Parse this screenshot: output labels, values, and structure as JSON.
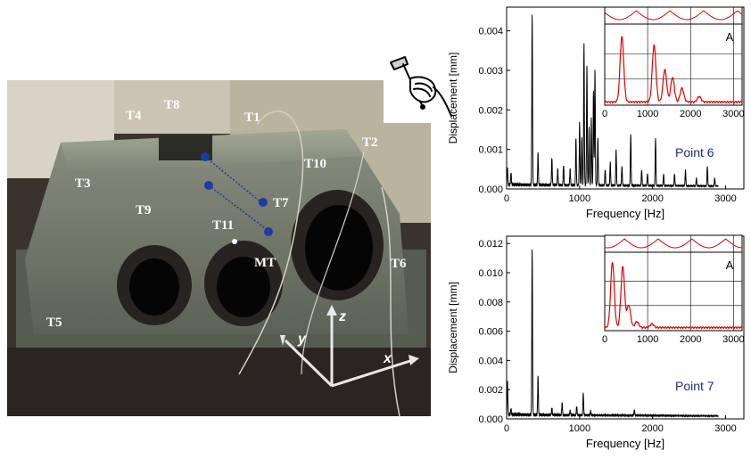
{
  "photo": {
    "sensor_labels": [
      "T1",
      "T2",
      "T3",
      "T4",
      "T5",
      "T6",
      "T7",
      "T8",
      "T9",
      "T10",
      "T11",
      "MT"
    ],
    "axis_labels": [
      "x",
      "y",
      "z"
    ]
  },
  "chart_data": [
    {
      "type": "line",
      "annotation": "Point 6",
      "xlabel": "Frequency [Hz]",
      "ylabel": "Displacement [mm]",
      "xlim": [
        0,
        3250
      ],
      "ylim": [
        0,
        0.0046
      ],
      "xticks": [
        0,
        1000,
        2000,
        3000
      ],
      "yticks": [
        0.0,
        0.001,
        0.002,
        0.003,
        0.004
      ],
      "ytick_labels": [
        "0.000",
        "0.001",
        "0.002",
        "0.003",
        "0.004"
      ],
      "color": "#000000",
      "peaks": [
        {
          "x": 12,
          "y": 0.0004
        },
        {
          "x": 60,
          "y": 0.0003
        },
        {
          "x": 350,
          "y": 0.0043
        },
        {
          "x": 430,
          "y": 0.0008
        },
        {
          "x": 620,
          "y": 0.0007
        },
        {
          "x": 700,
          "y": 0.0004
        },
        {
          "x": 780,
          "y": 0.0005
        },
        {
          "x": 870,
          "y": 0.0004
        },
        {
          "x": 950,
          "y": 0.0012
        },
        {
          "x": 1000,
          "y": 0.0016
        },
        {
          "x": 1030,
          "y": 0.0012
        },
        {
          "x": 1060,
          "y": 0.0036
        },
        {
          "x": 1100,
          "y": 0.003
        },
        {
          "x": 1130,
          "y": 0.0015
        },
        {
          "x": 1160,
          "y": 0.0017
        },
        {
          "x": 1190,
          "y": 0.0024
        },
        {
          "x": 1210,
          "y": 0.0029
        },
        {
          "x": 1250,
          "y": 0.0012
        },
        {
          "x": 1350,
          "y": 0.0004
        },
        {
          "x": 1420,
          "y": 0.0006
        },
        {
          "x": 1500,
          "y": 0.0009
        },
        {
          "x": 1580,
          "y": 0.0005
        },
        {
          "x": 1700,
          "y": 0.0013
        },
        {
          "x": 1850,
          "y": 0.0004
        },
        {
          "x": 1930,
          "y": 0.0003
        },
        {
          "x": 2040,
          "y": 0.0012
        },
        {
          "x": 2150,
          "y": 0.0003
        },
        {
          "x": 2300,
          "y": 0.0003
        },
        {
          "x": 2450,
          "y": 0.0004
        },
        {
          "x": 2600,
          "y": 0.0002
        },
        {
          "x": 2750,
          "y": 0.0005
        },
        {
          "x": 2850,
          "y": 0.0002
        }
      ],
      "inset": {
        "label": "A",
        "xlim": [
          0,
          3200
        ],
        "xticks": [
          0,
          1000,
          2000,
          3000
        ],
        "color": "#e00000",
        "peaks": [
          {
            "x": 400,
            "y": 0.85
          },
          {
            "x": 1150,
            "y": 0.74
          },
          {
            "x": 1400,
            "y": 0.42
          },
          {
            "x": 1580,
            "y": 0.32
          },
          {
            "x": 1800,
            "y": 0.18
          },
          {
            "x": 2200,
            "y": 0.07
          }
        ]
      }
    },
    {
      "type": "line",
      "annotation": "Point 7",
      "xlabel": "Frequency [Hz]",
      "ylabel": "Displacement [mm]",
      "xlim": [
        0,
        3250
      ],
      "ylim": [
        0,
        0.0125
      ],
      "xticks": [
        0,
        1000,
        2000,
        3000
      ],
      "yticks": [
        0.0,
        0.002,
        0.004,
        0.006,
        0.008,
        0.01,
        0.012
      ],
      "ytick_labels": [
        "0.000",
        "0.002",
        "0.004",
        "0.006",
        "0.008",
        "0.010",
        "0.012"
      ],
      "color": "#000000",
      "peaks": [
        {
          "x": 12,
          "y": 0.0022
        },
        {
          "x": 60,
          "y": 0.0004
        },
        {
          "x": 350,
          "y": 0.0113
        },
        {
          "x": 430,
          "y": 0.0026
        },
        {
          "x": 620,
          "y": 0.0005
        },
        {
          "x": 760,
          "y": 0.0008
        },
        {
          "x": 870,
          "y": 0.0003
        },
        {
          "x": 960,
          "y": 0.0006
        },
        {
          "x": 1050,
          "y": 0.0015
        },
        {
          "x": 1150,
          "y": 0.0003
        },
        {
          "x": 1750,
          "y": 0.0004
        }
      ],
      "inset": {
        "label": "A",
        "xlim": [
          0,
          3200
        ],
        "xticks": [
          0,
          1000,
          2000,
          3000
        ],
        "color": "#e00000",
        "peaks": [
          {
            "x": 180,
            "y": 0.88
          },
          {
            "x": 420,
            "y": 0.82
          },
          {
            "x": 560,
            "y": 0.3
          },
          {
            "x": 750,
            "y": 0.08
          },
          {
            "x": 1100,
            "y": 0.05
          }
        ]
      }
    }
  ]
}
